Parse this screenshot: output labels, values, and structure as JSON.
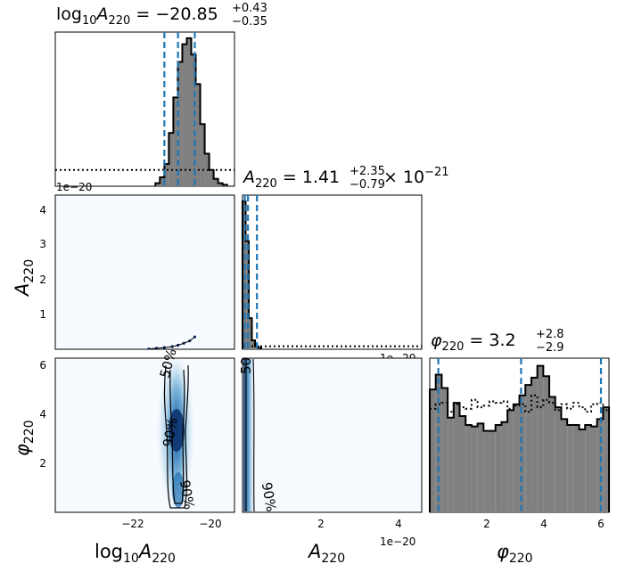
{
  "chart_data": [
    {
      "panel": "hist-logA",
      "type": "histogram",
      "title_main": "log",
      "title_sub1": "10",
      "title_var": "A",
      "title_sub2": "220",
      "title_value": " = −20.85",
      "title_sup": "+0.43",
      "title_sub": "−0.35",
      "xlim": [
        -24,
        -19.4
      ],
      "quantiles": [
        -21.2,
        -20.85,
        -20.42
      ],
      "posterior": {
        "bin_width": 0.115,
        "start": -21.43,
        "heights": [
          0.02,
          0.06,
          0.15,
          0.36,
          0.6,
          0.84,
          0.96,
          1.0,
          0.89,
          0.69,
          0.42,
          0.22,
          0.11,
          0.05,
          0.02,
          0.01
        ]
      },
      "prior_level": 0.11,
      "offset_text": "1e−20"
    },
    {
      "panel": "hist-A",
      "type": "histogram",
      "title_var": "A",
      "title_sub2": "220",
      "title_value": " = 1.41",
      "title_sup": "+2.35",
      "title_sub": "−0.79",
      "title_tail": " × 10",
      "title_exp": "−21",
      "xlim": [
        0,
        4.6
      ],
      "quantiles": [
        0.06,
        0.14,
        0.37
      ],
      "posterior": {
        "bin_width": 0.08,
        "start": 0.0,
        "heights": [
          1.0,
          0.73,
          0.21,
          0.06,
          0.02,
          0.01
        ]
      },
      "prior_level": 0.02,
      "offset_text": "1e−20"
    },
    {
      "panel": "hist-phi",
      "type": "histogram",
      "title_var": "φ",
      "title_sub2": "220",
      "title_value": " = 3.2",
      "title_sup": "+2.8",
      "title_sub": "−2.9",
      "xlim": [
        0,
        6.28
      ],
      "quantiles": [
        0.3,
        3.2,
        6.0
      ],
      "posterior": {
        "bin_width": 0.2094,
        "start": 0.0,
        "heights": [
          0.83,
          0.93,
          0.84,
          0.64,
          0.74,
          0.65,
          0.59,
          0.58,
          0.6,
          0.55,
          0.55,
          0.59,
          0.61,
          0.69,
          0.73,
          0.79,
          0.86,
          0.91,
          0.99,
          0.92,
          0.78,
          0.71,
          0.63,
          0.59,
          0.59,
          0.56,
          0.59,
          0.58,
          0.63,
          0.71
        ]
      },
      "prior": [
        0.7,
        0.73,
        0.74,
        0.68,
        0.73,
        0.71,
        0.7,
        0.76,
        0.71,
        0.72,
        0.75,
        0.74,
        0.75,
        0.7,
        0.72,
        0.73,
        0.68,
        0.79,
        0.71,
        0.76,
        0.74,
        0.69,
        0.73,
        0.7,
        0.74,
        0.71,
        0.68,
        0.73,
        0.74,
        0.69
      ]
    },
    {
      "panel": "scatter-A-vs-logA",
      "type": "scatter",
      "xlim": [
        -24,
        -19.4
      ],
      "ylim": [
        0,
        4.6
      ],
      "ylabel_var": "A",
      "ylabel_sub": "220",
      "points": [
        [
          -21.6,
          0.01
        ],
        [
          -21.4,
          0.03
        ],
        [
          -21.2,
          0.05
        ],
        [
          -21.0,
          0.08
        ],
        [
          -20.85,
          0.12
        ],
        [
          -20.7,
          0.18
        ],
        [
          -20.55,
          0.25
        ],
        [
          -20.42,
          0.37
        ]
      ]
    },
    {
      "panel": "density-phi-vs-logA",
      "type": "heatmap",
      "xlim": [
        -24,
        -19.4
      ],
      "ylim": [
        0,
        6.28
      ],
      "xlabel_sub1": "10",
      "xlabel_var": "A",
      "xlabel_sub2": "220",
      "ylabel_var": "φ",
      "ylabel_sub": "220",
      "contour_labels": [
        "50%",
        "90%",
        "90%"
      ]
    },
    {
      "panel": "density-phi-vs-A",
      "type": "heatmap",
      "xlim": [
        0,
        4.6
      ],
      "ylim": [
        0,
        6.28
      ],
      "xlabel_var": "A",
      "xlabel_sub": "220",
      "offset_text": "1e−20",
      "contour_labels": [
        "50",
        "90%"
      ]
    }
  ],
  "axes": {
    "logA_ticks": [
      "−22",
      "−20"
    ],
    "A_x_ticks": [
      "2",
      "4"
    ],
    "A_y_ticks": [
      "1",
      "2",
      "3",
      "4"
    ],
    "phi_y_ticks": [
      "2",
      "4",
      "6"
    ],
    "phi_x_ticks": [
      "2",
      "4",
      "6"
    ],
    "xlabel_phi_var": "φ",
    "xlabel_phi_sub": "220",
    "xlabel_log": "log",
    "ylabel_log": "log"
  },
  "colors": {
    "quantile_line": "#1f77b4",
    "hist_fill": "#808080",
    "density_low": "#f7fbff",
    "density_high": "#08306b"
  }
}
